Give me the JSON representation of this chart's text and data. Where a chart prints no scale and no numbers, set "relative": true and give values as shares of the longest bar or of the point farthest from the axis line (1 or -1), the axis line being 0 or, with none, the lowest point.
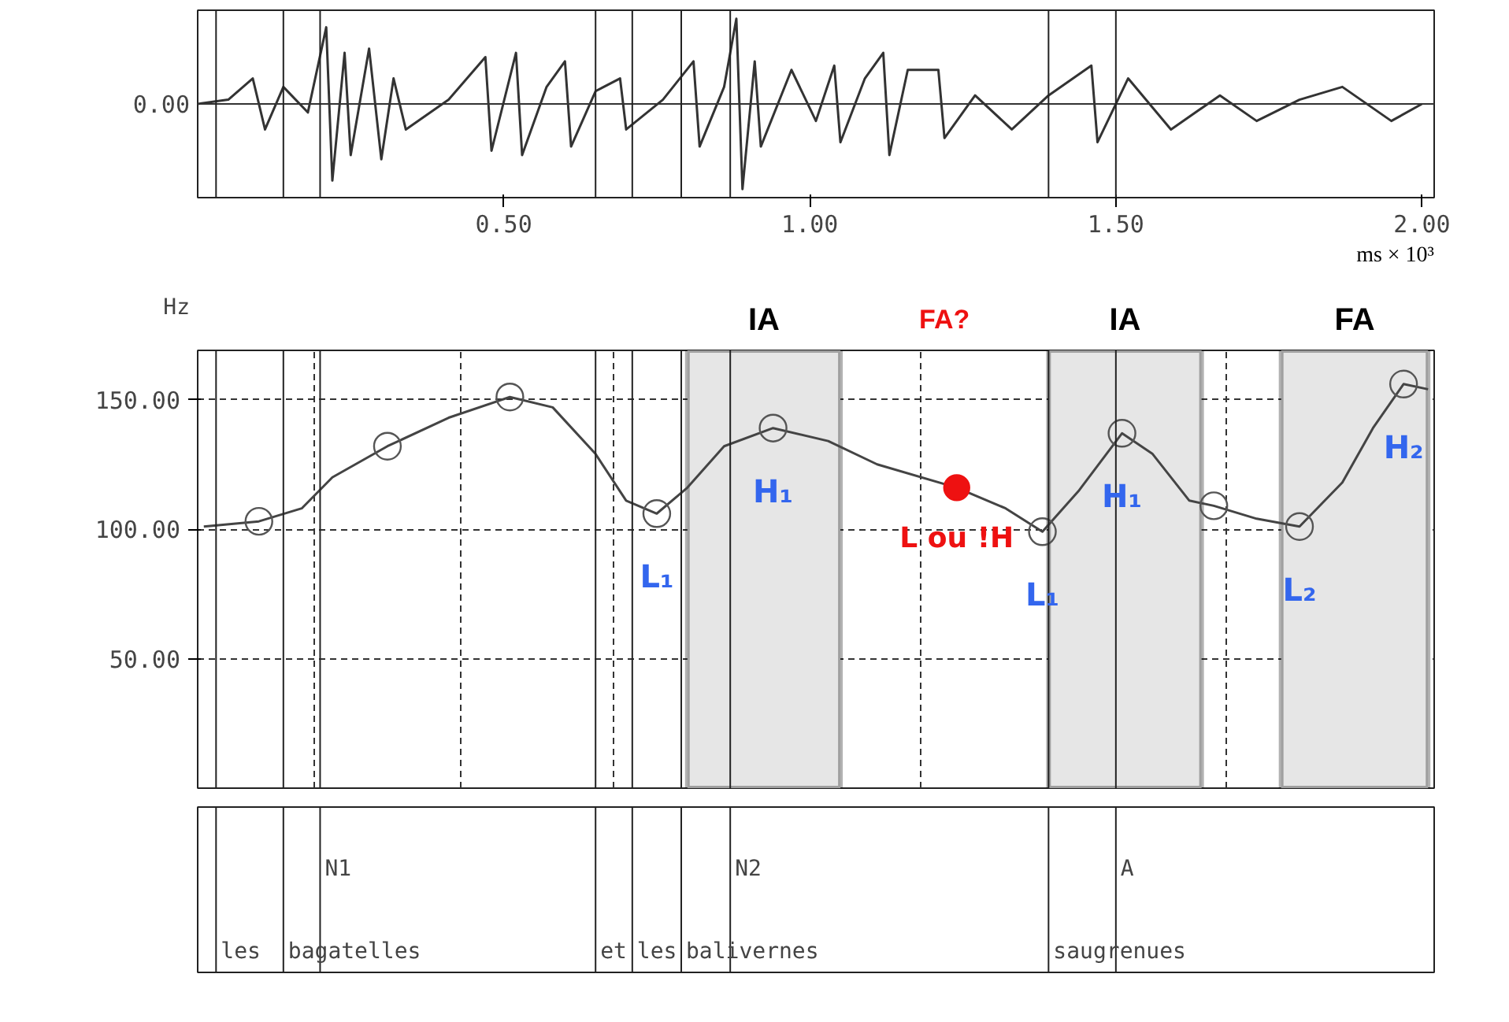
{
  "chart_data": [
    {
      "type": "line",
      "relative": true,
      "xlim": [
        0,
        2.02
      ],
      "xlabel": "ms × 10³",
      "xticks": [
        {
          "value": 0.5,
          "label": "0.50"
        },
        {
          "value": 1.0,
          "label": "1.00"
        },
        {
          "value": 1.5,
          "label": "1.50"
        },
        {
          "value": 2.0,
          "label": "2.00"
        }
      ],
      "tick_labels": "x",
      "annotations": [
        "0.00"
      ],
      "ref_lines": [
        {
          "axis": "x",
          "value": 0.03,
          "label": null
        },
        {
          "axis": "x",
          "value": 0.14,
          "label": null
        },
        {
          "axis": "x",
          "value": 0.2,
          "label": null
        },
        {
          "axis": "x",
          "value": 0.65,
          "label": null
        },
        {
          "axis": "x",
          "value": 0.71,
          "label": null
        },
        {
          "axis": "x",
          "value": 0.79,
          "label": null
        },
        {
          "axis": "x",
          "value": 0.87,
          "label": null
        },
        {
          "axis": "x",
          "value": 1.39,
          "label": null
        },
        {
          "axis": "x",
          "value": 1.5,
          "label": null
        }
      ],
      "series": [
        {
          "color": "#333333",
          "x": [
            0,
            0.05,
            0.09,
            0.11,
            0.14,
            0.18,
            0.21,
            0.22,
            0.24,
            0.25,
            0.28,
            0.3,
            0.32,
            0.34,
            0.41,
            0.47,
            0.48,
            0.52,
            0.53,
            0.57,
            0.6,
            0.61,
            0.65,
            0.69,
            0.7,
            0.76,
            0.81,
            0.82,
            0.86,
            0.88,
            0.89,
            0.91,
            0.92,
            0.97,
            1.01,
            1.04,
            1.05,
            1.09,
            1.12,
            1.13,
            1.16,
            1.21,
            1.22,
            1.27,
            1.33,
            1.39,
            1.46,
            1.47,
            1.52,
            1.59,
            1.67,
            1.73,
            1.8,
            1.87,
            1.95,
            2.0
          ],
          "values": [
            0,
            0.05,
            0.3,
            -0.3,
            0.2,
            -0.1,
            0.9,
            -0.9,
            0.6,
            -0.6,
            0.65,
            -0.65,
            0.3,
            -0.3,
            0.05,
            0.55,
            -0.55,
            0.6,
            -0.6,
            0.2,
            0.5,
            -0.5,
            0.15,
            0.3,
            -0.3,
            0.05,
            0.5,
            -0.5,
            0.2,
            1.0,
            -1.0,
            0.5,
            -0.5,
            0.4,
            -0.2,
            0.45,
            -0.45,
            0.3,
            0.6,
            -0.6,
            0.4,
            0.4,
            -0.4,
            0.1,
            -0.3,
            0.1,
            0.45,
            -0.45,
            0.3,
            -0.3,
            0.1,
            -0.2,
            0.05,
            0.2,
            -0.2,
            0
          ]
        }
      ]
    },
    {
      "type": "line",
      "xlim": [
        0,
        2.02
      ],
      "ylim": [
        0,
        169
      ],
      "ylabel": "Hz",
      "yticks": [
        {
          "value": 50,
          "label": "50.00"
        },
        {
          "value": 100,
          "label": "100.00"
        },
        {
          "value": 150,
          "label": "150.00"
        }
      ],
      "xticks": [
        {
          "value": 0.19,
          "label": null
        },
        {
          "value": 0.43,
          "label": null
        },
        {
          "value": 0.68,
          "label": null
        },
        {
          "value": 0.94,
          "label": null
        },
        {
          "value": 1.18,
          "label": null
        },
        {
          "value": 1.43,
          "label": null
        },
        {
          "value": 1.68,
          "label": null
        },
        {
          "value": 1.92,
          "label": null
        }
      ],
      "tick_labels": "y",
      "grid": true,
      "bands": [
        {
          "axis": "x",
          "from": 0.8,
          "to": 1.05,
          "label": "IA",
          "color": "#e6e6e6"
        },
        {
          "axis": "x",
          "from": 1.39,
          "to": 1.64,
          "label": "IA",
          "color": "#e6e6e6"
        },
        {
          "axis": "x",
          "from": 1.77,
          "to": 2.01,
          "label": "FA",
          "color": "#e6e6e6"
        }
      ],
      "annotations": [
        "FA?"
      ],
      "series": [
        {
          "color": "#444444",
          "marker": "none",
          "x": [
            0.01,
            0.1,
            0.17,
            0.22,
            0.31,
            0.41,
            0.51,
            0.58,
            0.65,
            0.7,
            0.75,
            0.8,
            0.86,
            0.94,
            1.03,
            1.11,
            1.24,
            1.32,
            1.38,
            1.44,
            1.51,
            1.56,
            1.62,
            1.66,
            1.73,
            1.8,
            1.87,
            1.92,
            1.97,
            2.01
          ],
          "values": [
            101,
            103,
            108,
            120,
            132,
            143,
            151,
            147,
            129,
            111,
            106,
            116,
            132,
            139,
            134,
            125,
            116,
            108,
            99,
            115,
            137,
            129,
            111,
            109,
            104,
            101,
            118,
            139,
            156,
            154
          ]
        },
        {
          "type": "scatter",
          "color": "#555555",
          "marker": "circle",
          "x": [
            0.1,
            0.31,
            0.51,
            0.75,
            0.94,
            1.38,
            1.51,
            1.66,
            1.8,
            1.97
          ],
          "values": [
            103,
            132,
            151,
            106,
            139,
            99,
            137,
            109,
            101,
            156
          ],
          "value_labels": [
            null,
            null,
            null,
            "L₁",
            "H₁",
            "L₁",
            "H₁",
            null,
            "L₂",
            "H₂"
          ]
        },
        {
          "type": "scatter",
          "name": "L ou !H",
          "color": "#ee1111",
          "marker": "circle",
          "x": [
            1.24
          ],
          "values": [
            116
          ]
        }
      ]
    },
    {
      "type": "other",
      "annotations": [
        "les",
        "bagatelles",
        "N1",
        "et",
        "les",
        "balivernes",
        "N2",
        "saugrenues",
        "A"
      ]
    }
  ]
}
